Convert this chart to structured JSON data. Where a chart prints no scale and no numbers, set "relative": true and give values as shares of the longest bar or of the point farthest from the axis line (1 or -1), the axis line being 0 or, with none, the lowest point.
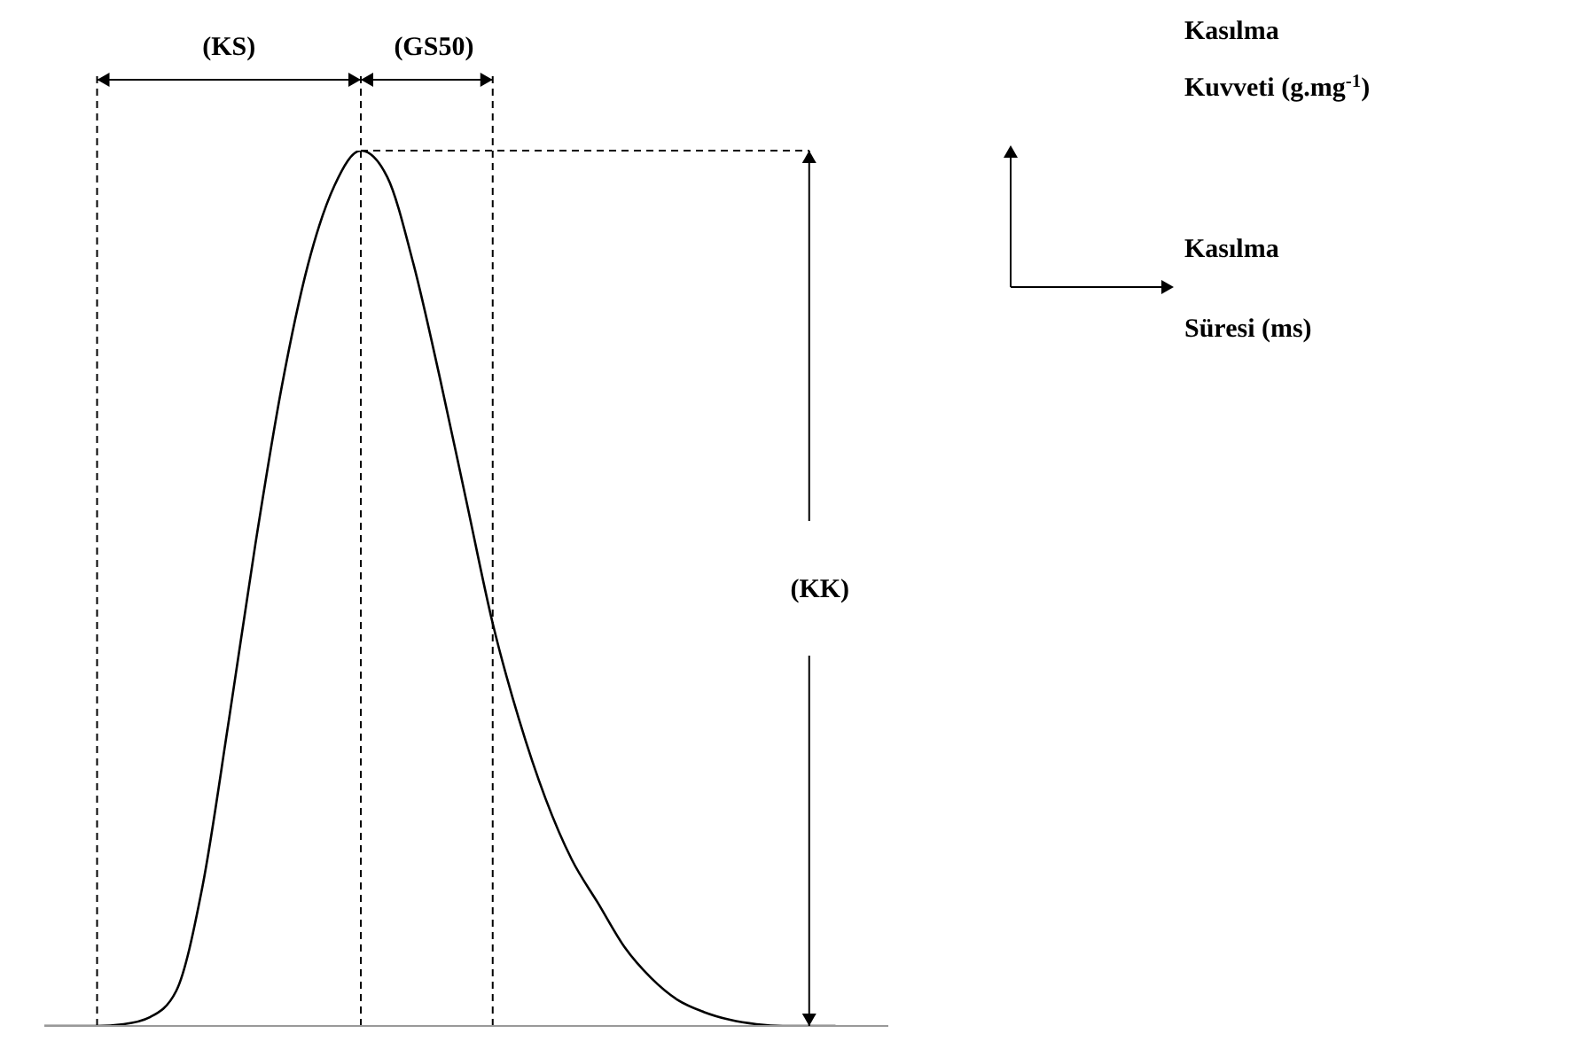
{
  "chart_data": {
    "type": "line",
    "relative": true,
    "grid": "x",
    "legend": false,
    "marker": "none",
    "line_style": "solid",
    "categories": [
      null,
      null,
      null,
      null,
      null,
      null,
      null,
      null,
      null,
      null,
      null,
      null,
      null,
      null,
      null,
      null,
      null,
      null,
      null,
      null,
      null,
      null,
      null,
      null,
      null,
      null,
      null,
      null,
      null,
      null,
      null,
      null,
      null
    ],
    "series": [
      {
        "color": "#000000",
        "values": [
          0,
          0,
          0,
          0.002,
          0.01,
          0.04,
          0.16,
          0.35,
          0.55,
          0.73,
          0.87,
          0.96,
          1,
          0.97,
          0.87,
          0.74,
          0.6,
          0.46,
          0.35,
          0.26,
          0.19,
          0.14,
          0.09,
          0.055,
          0.03,
          0.016,
          0.007,
          0.002,
          0,
          0,
          0,
          null,
          null
        ]
      }
    ],
    "ref_lines": [
      {
        "axis": "y",
        "value": 1,
        "line_style": "dashed",
        "color": "#000000"
      }
    ],
    "annotations": [
      "(KS)",
      "(GS50)",
      "(KK)",
      "Kasılma Kuvveti (g.mg$^{-1}$)",
      "Kasılma Süresi (ms)"
    ]
  }
}
